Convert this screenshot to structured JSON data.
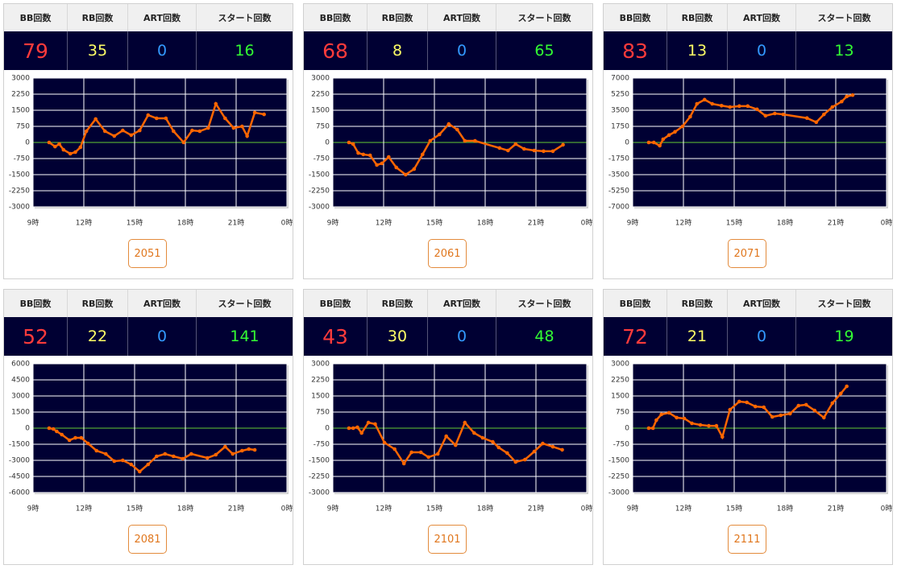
{
  "headers": [
    "BB回数",
    "RB回数",
    "ART回数",
    "スタート回数"
  ],
  "stat_colors": [
    "#ff3b3b",
    "#ffff66",
    "#3399ff",
    "#33ff33"
  ],
  "panels": [
    {
      "stats": [
        79,
        35,
        0,
        16
      ],
      "button": "2051",
      "chart": {
        "type": "line",
        "color": "#ff6600",
        "baseline_color": "#66cc33",
        "grid": true,
        "xlim": [
          9,
          24
        ],
        "xticks": [
          {
            "value": 9,
            "label": "9時"
          },
          {
            "value": 12,
            "label": "12時"
          },
          {
            "value": 15,
            "label": "15時"
          },
          {
            "value": 18,
            "label": "18時"
          },
          {
            "value": 21,
            "label": "21時"
          },
          {
            "value": 24,
            "label": "0時"
          }
        ],
        "ylim": [
          -3000,
          3000
        ],
        "yticks": [
          3000,
          2250,
          1500,
          750,
          0,
          -750,
          -1500,
          -2250,
          -3000
        ],
        "x": [
          9.95,
          10.3,
          10.55,
          10.8,
          11.2,
          11.5,
          11.8,
          12.15,
          12.7,
          13.25,
          13.8,
          14.3,
          14.8,
          15.3,
          15.8,
          16.3,
          16.85,
          17.3,
          17.9,
          18.4,
          18.85,
          19.35,
          19.8,
          20.35,
          20.85,
          21.35,
          21.65,
          22.1,
          22.65
        ],
        "values": [
          0,
          -190,
          -75,
          -340,
          -525,
          -450,
          -225,
          525,
          1090,
          525,
          300,
          560,
          340,
          560,
          1275,
          1125,
          1125,
          525,
          0,
          560,
          525,
          675,
          1800,
          1125,
          675,
          750,
          300,
          1390,
          1310
        ]
      }
    },
    {
      "stats": [
        68,
        8,
        0,
        65
      ],
      "button": "2061",
      "chart": {
        "type": "line",
        "color": "#ff6600",
        "baseline_color": "#66cc33",
        "grid": true,
        "xlim": [
          9,
          24
        ],
        "xticks": [
          {
            "value": 9,
            "label": "9時"
          },
          {
            "value": 12,
            "label": "12時"
          },
          {
            "value": 15,
            "label": "15時"
          },
          {
            "value": 18,
            "label": "18時"
          },
          {
            "value": 21,
            "label": "21時"
          },
          {
            "value": 24,
            "label": "0時"
          }
        ],
        "ylim": [
          -3000,
          3000
        ],
        "yticks": [
          3000,
          2250,
          1500,
          750,
          0,
          -750,
          -1500,
          -2250,
          -3000
        ],
        "x": [
          9.95,
          10.2,
          10.5,
          10.8,
          11.2,
          11.6,
          11.9,
          12.3,
          12.75,
          13.3,
          13.8,
          14.3,
          14.75,
          15.3,
          15.85,
          16.35,
          16.8,
          17.4,
          18.85,
          19.35,
          19.8,
          20.3,
          20.9,
          21.45,
          22,
          22.6
        ],
        "values": [
          0,
          -75,
          -490,
          -560,
          -600,
          -1050,
          -975,
          -675,
          -1165,
          -1500,
          -1240,
          -560,
          75,
          375,
          860,
          600,
          75,
          75,
          -260,
          -375,
          -75,
          -300,
          -375,
          -410,
          -410,
          -110
        ]
      }
    },
    {
      "stats": [
        83,
        13,
        0,
        13
      ],
      "button": "2071",
      "chart": {
        "type": "line",
        "color": "#ff6600",
        "baseline_color": "#66cc33",
        "grid": true,
        "xlim": [
          9,
          24
        ],
        "xticks": [
          {
            "value": 9,
            "label": "9時"
          },
          {
            "value": 12,
            "label": "12時"
          },
          {
            "value": 15,
            "label": "15時"
          },
          {
            "value": 18,
            "label": "18時"
          },
          {
            "value": 21,
            "label": "21時"
          },
          {
            "value": 24,
            "label": "0時"
          }
        ],
        "ylim": [
          -7000,
          7000
        ],
        "yticks": [
          7000,
          5250,
          3500,
          1750,
          0,
          -1750,
          -3500,
          -5250,
          -7000
        ],
        "x": [
          9.95,
          10.25,
          10.6,
          10.8,
          11.15,
          11.5,
          11.95,
          12.4,
          12.8,
          13.25,
          13.7,
          14.25,
          14.75,
          15.3,
          15.8,
          16.35,
          16.85,
          17.4,
          17.9,
          19.3,
          19.85,
          20.3,
          20.8,
          21.35,
          21.65,
          22
        ],
        "values": [
          0,
          0,
          -350,
          350,
          800,
          1150,
          1750,
          2800,
          4200,
          4650,
          4200,
          4000,
          3850,
          3950,
          3950,
          3600,
          2900,
          3150,
          3050,
          2650,
          2200,
          3050,
          3850,
          4450,
          5000,
          5150
        ]
      }
    },
    {
      "stats": [
        52,
        22,
        0,
        141
      ],
      "button": "2081",
      "chart": {
        "type": "line",
        "color": "#ff6600",
        "baseline_color": "#66cc33",
        "grid": true,
        "xlim": [
          9,
          24
        ],
        "xticks": [
          {
            "value": 9,
            "label": "9時"
          },
          {
            "value": 12,
            "label": "12時"
          },
          {
            "value": 15,
            "label": "15時"
          },
          {
            "value": 18,
            "label": "18時"
          },
          {
            "value": 21,
            "label": "21時"
          },
          {
            "value": 24,
            "label": "0時"
          }
        ],
        "ylim": [
          -6000,
          6000
        ],
        "yticks": [
          6000,
          4500,
          3000,
          1500,
          0,
          -1500,
          -3000,
          -4500,
          -6000
        ],
        "x": [
          9.95,
          10.2,
          10.4,
          10.7,
          11.15,
          11.5,
          11.85,
          12.25,
          12.75,
          13.3,
          13.8,
          14.3,
          14.8,
          15.3,
          15.8,
          16.3,
          16.8,
          17.3,
          17.85,
          18.35,
          19.3,
          19.8,
          20.35,
          20.8,
          21.35,
          21.75,
          22.1
        ],
        "values": [
          0,
          -75,
          -300,
          -600,
          -1125,
          -900,
          -900,
          -1425,
          -2100,
          -2400,
          -3075,
          -3000,
          -3375,
          -4050,
          -3375,
          -2625,
          -2400,
          -2625,
          -2850,
          -2400,
          -2775,
          -2475,
          -1725,
          -2400,
          -2100,
          -1950,
          -2025
        ]
      }
    },
    {
      "stats": [
        43,
        30,
        0,
        48
      ],
      "button": "2101",
      "chart": {
        "type": "line",
        "color": "#ff6600",
        "baseline_color": "#66cc33",
        "grid": true,
        "xlim": [
          9,
          24
        ],
        "xticks": [
          {
            "value": 9,
            "label": "9時"
          },
          {
            "value": 12,
            "label": "12時"
          },
          {
            "value": 15,
            "label": "15時"
          },
          {
            "value": 18,
            "label": "18時"
          },
          {
            "value": 21,
            "label": "21時"
          },
          {
            "value": 24,
            "label": "0時"
          }
        ],
        "ylim": [
          -3000,
          3000
        ],
        "yticks": [
          3000,
          2250,
          1500,
          750,
          0,
          -750,
          -1500,
          -2250,
          -3000
        ],
        "x": [
          9.95,
          10.2,
          10.45,
          10.7,
          11.1,
          11.5,
          12.05,
          12.65,
          13.2,
          13.65,
          14.2,
          14.65,
          15.2,
          15.7,
          16.25,
          16.8,
          17.35,
          17.85,
          18.45,
          18.8,
          19.3,
          19.8,
          20.35,
          20.9,
          21.4,
          22,
          22.55
        ],
        "values": [
          0,
          0,
          40,
          -225,
          260,
          190,
          -675,
          -975,
          -1650,
          -1125,
          -1125,
          -1350,
          -1200,
          -375,
          -790,
          260,
          -225,
          -450,
          -640,
          -900,
          -1160,
          -1575,
          -1465,
          -1090,
          -715,
          -865,
          -1010
        ]
      }
    },
    {
      "stats": [
        72,
        21,
        0,
        19
      ],
      "button": "2111",
      "chart": {
        "type": "line",
        "color": "#ff6600",
        "baseline_color": "#66cc33",
        "grid": true,
        "xlim": [
          9,
          24
        ],
        "xticks": [
          {
            "value": 9,
            "label": "9時"
          },
          {
            "value": 12,
            "label": "12時"
          },
          {
            "value": 15,
            "label": "15時"
          },
          {
            "value": 18,
            "label": "18時"
          },
          {
            "value": 21,
            "label": "21時"
          },
          {
            "value": 24,
            "label": "0時"
          }
        ],
        "ylim": [
          -3000,
          3000
        ],
        "yticks": [
          3000,
          2250,
          1500,
          750,
          0,
          -750,
          -1500,
          -2250,
          -3000
        ],
        "x": [
          9.95,
          10.2,
          10.4,
          10.7,
          11.15,
          11.6,
          12.05,
          12.5,
          13,
          13.5,
          13.95,
          14.3,
          14.75,
          15.3,
          15.75,
          16.25,
          16.75,
          17.25,
          17.75,
          18.3,
          18.8,
          19.25,
          19.75,
          20.3,
          20.8,
          21.3,
          21.65
        ],
        "values": [
          0,
          0,
          375,
          640,
          715,
          490,
          450,
          225,
          150,
          110,
          110,
          -410,
          860,
          1240,
          1200,
          1010,
          975,
          525,
          600,
          675,
          1050,
          1090,
          825,
          490,
          1165,
          1615,
          1950
        ]
      }
    }
  ]
}
